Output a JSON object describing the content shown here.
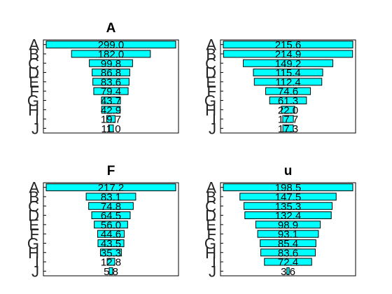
{
  "colors": {
    "bar": "#00ffff",
    "stroke": "#000000"
  },
  "chart_data": [
    {
      "type": "bar",
      "orientation": "horizontal-funnel",
      "title": "A",
      "categories": [
        "A",
        "B",
        "C",
        "D",
        "E",
        "F",
        "G",
        "H",
        "I",
        "J"
      ],
      "values": [
        299.0,
        182.0,
        99.8,
        86.8,
        83.6,
        79.4,
        43.7,
        42.9,
        19.7,
        11.0
      ],
      "labels": [
        "299.0",
        "182.0",
        "99.8",
        "86.8",
        "83.6",
        "79.4",
        "43.7",
        "42.9",
        "19.7",
        "11.0"
      ],
      "xlim": [
        0,
        299.0
      ],
      "grid": false
    },
    {
      "type": "bar",
      "orientation": "horizontal-funnel",
      "title": "",
      "categories": [
        "A",
        "B",
        "C",
        "D",
        "E",
        "F",
        "G",
        "H",
        "I",
        "J"
      ],
      "values": [
        215.6,
        214.9,
        149.2,
        115.4,
        112.4,
        74.6,
        61.3,
        22.0,
        17.7,
        17.3
      ],
      "labels": [
        "215.6",
        "214.9",
        "149.2",
        "115.4",
        "112.4",
        "74.6",
        "61.3",
        "22.0",
        "17.7",
        "17.3"
      ],
      "xlim": [
        0,
        215.6
      ],
      "grid": false
    },
    {
      "type": "bar",
      "orientation": "horizontal-funnel",
      "title": "F",
      "categories": [
        "A",
        "B",
        "C",
        "D",
        "E",
        "F",
        "G",
        "H",
        "I",
        "J"
      ],
      "values": [
        217.2,
        83.1,
        74.8,
        64.5,
        56.0,
        44.6,
        43.5,
        35.3,
        12.8,
        5.8
      ],
      "labels": [
        "217.2",
        "83.1",
        "74.8",
        "64.5",
        "56.0",
        "44.6",
        "43.5",
        "35.3",
        "12.8",
        "5.8"
      ],
      "xlim": [
        0,
        217.2
      ],
      "grid": false
    },
    {
      "type": "bar",
      "orientation": "horizontal-funnel",
      "title": "u",
      "categories": [
        "A",
        "B",
        "C",
        "D",
        "E",
        "F",
        "G",
        "H",
        "I",
        "J"
      ],
      "values": [
        198.5,
        147.5,
        135.3,
        132.4,
        98.9,
        93.1,
        85.4,
        83.6,
        72.4,
        3.6
      ],
      "labels": [
        "198.5",
        "147.5",
        "135.3",
        "132.4",
        "98.9",
        "93.1",
        "85.4",
        "83.6",
        "72.4",
        "3.6"
      ],
      "xlim": [
        0,
        198.5
      ],
      "grid": false
    }
  ]
}
